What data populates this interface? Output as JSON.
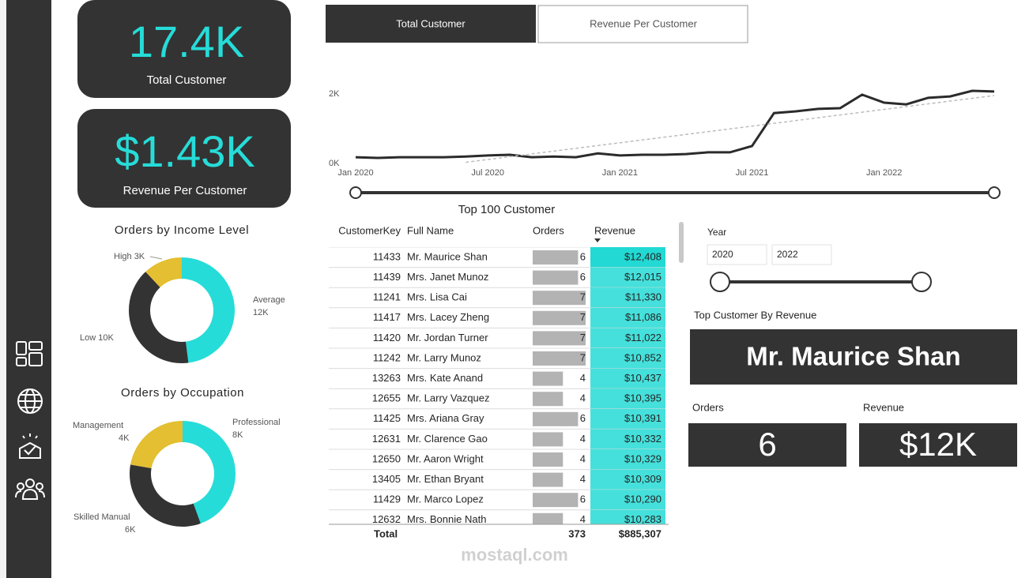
{
  "cards": [
    {
      "value": "17.4K",
      "label": "Total Customer"
    },
    {
      "value": "$1.43K",
      "label": "Revenue Per Customer"
    }
  ],
  "tabs": [
    "Total Customer",
    "Revenue Per Customer"
  ],
  "chart_data": [
    {
      "type": "line",
      "x": [
        "Jan 2020",
        "Feb 2020",
        "Mar 2020",
        "Apr 2020",
        "May 2020",
        "Jun 2020",
        "Jul 2020",
        "Aug 2020",
        "Sep 2020",
        "Oct 2020",
        "Nov 2020",
        "Dec 2020",
        "Jan 2021",
        "Feb 2021",
        "Mar 2021",
        "Apr 2021",
        "May 2021",
        "Jun 2021",
        "Jul 2021",
        "Aug 2021",
        "Sep 2021",
        "Oct 2021",
        "Nov 2021",
        "Dec 2021",
        "Jan 2022",
        "Feb 2022",
        "Mar 2022",
        "Apr 2022",
        "May 2022",
        "Jun 2022"
      ],
      "series": [
        {
          "color": "#2b2b2b",
          "values": [
            180,
            160,
            180,
            180,
            180,
            200,
            230,
            250,
            180,
            200,
            180,
            290,
            230,
            250,
            250,
            270,
            320,
            320,
            500,
            1450,
            1500,
            1570,
            1590,
            1980,
            1750,
            1700,
            1890,
            1930,
            2090,
            2070
          ]
        },
        {
          "color": "#bdbdbd",
          "dashed": true,
          "values": [
            null,
            null,
            null,
            null,
            null,
            35,
            115,
            195,
            275,
            355,
            435,
            515,
            595,
            675,
            755,
            835,
            915,
            995,
            1075,
            1155,
            1235,
            1315,
            1395,
            1475,
            1555,
            1635,
            1715,
            1795,
            1875,
            1955
          ]
        }
      ],
      "ylim": [
        0,
        2400
      ],
      "yticks": [
        {
          "value": 0,
          "label": "0K"
        },
        {
          "value": 2000,
          "label": "2K"
        }
      ],
      "xticks": [
        "Jan 2020",
        "Jul 2020",
        "Jan 2021",
        "Jul 2021",
        "Jan 2022"
      ]
    },
    {
      "type": "pie",
      "title": "Orders by Income Level",
      "categories": [
        "Average",
        "Low",
        "High"
      ],
      "values": [
        12000,
        10000,
        3000
      ],
      "value_labels": [
        "12K",
        "10K",
        "3K"
      ],
      "colors": [
        "#26dcd8",
        "#333333",
        "#e3bf31"
      ]
    },
    {
      "type": "pie",
      "title": "Orders by Occupation",
      "categories": [
        "Professional",
        "Skilled Manual",
        "Management"
      ],
      "values": [
        8000,
        6000,
        4000
      ],
      "value_labels": [
        "8K",
        "6K",
        "4K"
      ],
      "colors": [
        "#26dcd8",
        "#333333",
        "#e3bf31"
      ]
    }
  ],
  "table": {
    "title": "Top 100 Customer",
    "columns": [
      "CustomerKey",
      "Full Name",
      "Orders",
      "Revenue"
    ],
    "rows": [
      [
        11433,
        "Mr. Maurice Shan",
        6,
        "$12,408"
      ],
      [
        11439,
        "Mrs. Janet Munoz",
        6,
        "$12,015"
      ],
      [
        11241,
        "Mrs. Lisa Cai",
        7,
        "$11,330"
      ],
      [
        11417,
        "Mrs. Lacey Zheng",
        7,
        "$11,086"
      ],
      [
        11420,
        "Mr. Jordan Turner",
        7,
        "$11,022"
      ],
      [
        11242,
        "Mr. Larry Munoz",
        7,
        "$10,852"
      ],
      [
        13263,
        "Mrs. Kate Anand",
        4,
        "$10,437"
      ],
      [
        12655,
        "Mr. Larry Vazquez",
        4,
        "$10,395"
      ],
      [
        11425,
        "Mrs. Ariana Gray",
        6,
        "$10,391"
      ],
      [
        12631,
        "Mr. Clarence Gao",
        4,
        "$10,332"
      ],
      [
        12650,
        "Mr. Aaron Wright",
        4,
        "$10,329"
      ],
      [
        13405,
        "Mr. Ethan Bryant",
        4,
        "$10,309"
      ],
      [
        11429,
        "Mr. Marco Lopez",
        6,
        "$10,290"
      ],
      [
        12632,
        "Mrs. Bonnie Nath",
        4,
        "$10,283"
      ]
    ],
    "total": [
      "Total",
      373,
      "$885,307"
    ]
  },
  "year_slicer": {
    "label": "Year",
    "start": "2020",
    "end": "2022"
  },
  "top_customer": {
    "title": "Top Customer By Revenue",
    "name": "Mr. Maurice Shan",
    "orders_label": "Orders",
    "orders": "6",
    "revenue_label": "Revenue",
    "revenue": "$12K"
  },
  "watermark": "mostaql.com"
}
